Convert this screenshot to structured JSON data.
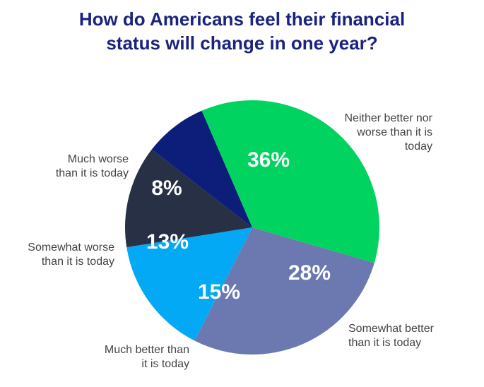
{
  "chart_data": {
    "type": "pie",
    "title": "How do Americans feel their financial\nstatus will change in one year?",
    "start_angle_deg": 16.2,
    "direction": "clockwise",
    "slices": [
      {
        "label": "Somewhat better than it is today",
        "label_lines": [
          "Somewhat better",
          "than it is today"
        ],
        "value": 28,
        "display": "28%",
        "color": "#6b79b0"
      },
      {
        "label": "Much better than it is today",
        "label_lines": [
          "Much better than",
          "it is today"
        ],
        "value": 15,
        "display": "15%",
        "color": "#03a9f4"
      },
      {
        "label": "Somewhat worse than it is today",
        "label_lines": [
          "Somewhat worse",
          "than it is today"
        ],
        "value": 13,
        "display": "13%",
        "color": "#283045"
      },
      {
        "label": "Much worse than it is today",
        "label_lines": [
          "Much worse",
          "than it is today"
        ],
        "value": 8,
        "display": "8%",
        "color": "#0d1d7a"
      },
      {
        "label": "Neither better nor worse than it is today",
        "label_lines": [
          "Neither better nor",
          "worse than it is",
          "today"
        ],
        "value": 36,
        "display": "36%",
        "color": "#00d35f"
      }
    ]
  }
}
